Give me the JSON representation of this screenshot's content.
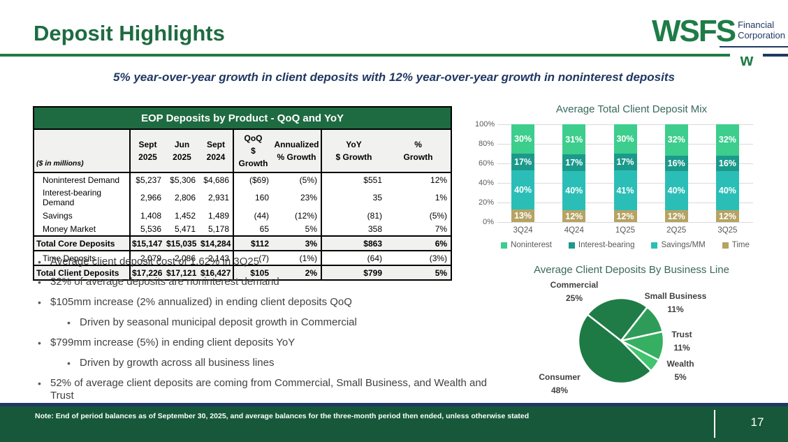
{
  "header": {
    "title": "Deposit Highlights",
    "logo": {
      "wordmark": "WSFS",
      "line1": "Financial",
      "line2": "Corporation",
      "mark": "w"
    }
  },
  "subtitle": "5% year-over-year growth in client deposits with 12% year-over-year growth in noninterest deposits",
  "colors": {
    "brand_green": "#1E7C46",
    "title_green": "#1E6B41",
    "navy": "#1F3864",
    "footer_green": "#17583A",
    "chart_title": "#38695D"
  },
  "deposits_table": {
    "title": "EOP Deposits by Product - QoQ and YoY",
    "unit_label": "($ in millions)",
    "columns": [
      "Sept\n2025",
      "Jun\n2025",
      "Sept\n2024",
      "QoQ\n$ Growth",
      "Annualized\n% Growth",
      "YoY\n$ Growth",
      "%\nGrowth"
    ],
    "rows": [
      {
        "label": "Noninterest Demand",
        "style": "data",
        "values": [
          "$5,237",
          "$5,306",
          "$4,686",
          "($69)",
          "(5%)",
          "$551",
          "12%"
        ]
      },
      {
        "label": "Interest-bearing Demand",
        "style": "data",
        "values": [
          "2,966",
          "2,806",
          "2,931",
          "160",
          "23%",
          "35",
          "1%"
        ]
      },
      {
        "label": "Savings",
        "style": "data",
        "values": [
          "1,408",
          "1,452",
          "1,489",
          "(44)",
          "(12%)",
          "(81)",
          "(5%)"
        ]
      },
      {
        "label": "Money Market",
        "style": "data",
        "values": [
          "5,536",
          "5,471",
          "5,178",
          "65",
          "5%",
          "358",
          "7%"
        ]
      },
      {
        "label": "Total Core Deposits",
        "style": "total",
        "values": [
          "$15,147",
          "$15,035",
          "$14,284",
          "$112",
          "3%",
          "$863",
          "6%"
        ]
      },
      {
        "label": "Time Deposits",
        "style": "data",
        "values": [
          "2,079",
          "2,086",
          "2,143",
          "(7)",
          "(1%)",
          "(64)",
          "(3%)"
        ]
      },
      {
        "label": "Total Client Deposits",
        "style": "total",
        "values": [
          "$17,226",
          "$17,121",
          "$16,427",
          "$105",
          "2%",
          "$799",
          "5%"
        ]
      }
    ]
  },
  "bullets": [
    {
      "text": "Average client deposit cost of 1.62% in 3Q25",
      "level": 1
    },
    {
      "text": "32% of average deposits are noninterest demand",
      "level": 1
    },
    {
      "text": "$105mm increase (2% annualized) in ending client deposits QoQ",
      "level": 1
    },
    {
      "text": "Driven by seasonal municipal deposit growth in Commercial",
      "level": 2
    },
    {
      "text": "$799mm increase (5%) in ending client deposits YoY",
      "level": 1
    },
    {
      "text": "Driven by growth across all business lines",
      "level": 2
    },
    {
      "text": "52% of average client deposits are coming from Commercial, Small Business, and Wealth and Trust",
      "level": 1
    }
  ],
  "chart_data": [
    {
      "type": "bar",
      "stacked": true,
      "title": "Average Total Client Deposit Mix",
      "categories": [
        "3Q24",
        "4Q24",
        "1Q25",
        "2Q25",
        "3Q25"
      ],
      "series": [
        {
          "name": "Time",
          "values": [
            13,
            12,
            12,
            12,
            12
          ],
          "color": "#B6A364"
        },
        {
          "name": "Savings/MM",
          "values": [
            40,
            40,
            41,
            40,
            40
          ],
          "color": "#2BBEB7"
        },
        {
          "name": "Interest-bearing",
          "values": [
            17,
            17,
            17,
            16,
            16
          ],
          "color": "#1B9A8C"
        },
        {
          "name": "Noninterest",
          "values": [
            30,
            31,
            30,
            32,
            32
          ],
          "color": "#3DCD8D"
        }
      ],
      "legend_order": [
        "Noninterest",
        "Interest-bearing",
        "Savings/MM",
        "Time"
      ],
      "legend_position": "bottom",
      "ylim": [
        0,
        100
      ],
      "yticks": [
        "0%",
        "20%",
        "40%",
        "60%",
        "80%",
        "100%"
      ],
      "grid": true,
      "value_label_suffix": "%"
    },
    {
      "type": "pie",
      "title": "Average Client Deposits By Business Line",
      "start_angle_deg": -52,
      "slices": [
        {
          "label": "Commercial",
          "value": 25,
          "display": "25%",
          "color": "#1F7C47"
        },
        {
          "label": "Small Business",
          "value": 11,
          "display": "11%",
          "color": "#2E9C58"
        },
        {
          "label": "Trust",
          "value": 11,
          "display": "11%",
          "color": "#36AF62"
        },
        {
          "label": "Wealth",
          "value": 5,
          "display": "5%",
          "color": "#40C46F"
        },
        {
          "label": "Consumer",
          "value": 48,
          "display": "48%",
          "color": "#1D7A44"
        }
      ]
    }
  ],
  "footer": {
    "note": "Note: End of period balances as of September 30, 2025, and average balances for the three-month period then ended, unless otherwise stated",
    "page_number": "17"
  }
}
